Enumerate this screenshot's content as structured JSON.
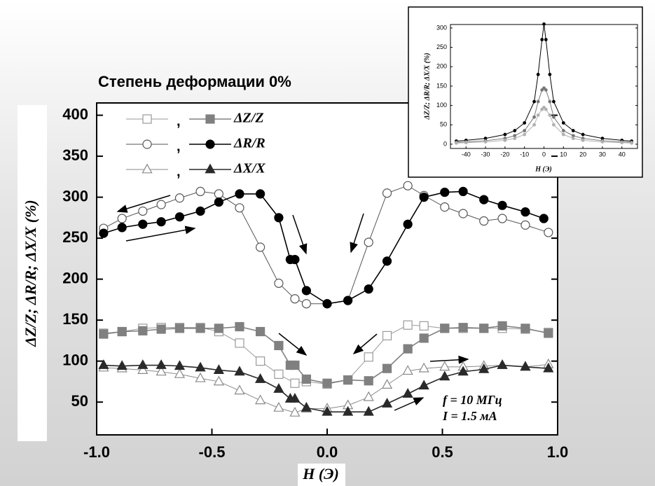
{
  "chart_data": [
    {
      "type": "line",
      "title": "Степень деформации 0%",
      "x_label": "H  (Э)",
      "y_label": "ΔZ/Z;  ΔR/R;  ΔX/X    (%)",
      "annotations": [
        "f = 10 МГц",
        "I = 1.5 мА"
      ],
      "xlim": [
        -1.0,
        1.0
      ],
      "ylim": [
        10,
        415
      ],
      "xticks": [
        {
          "value": -1.0,
          "label": "-1.0"
        },
        {
          "value": -0.5,
          "label": "-0.5"
        },
        {
          "value": 0,
          "label": "0.0"
        },
        {
          "value": 0.5,
          "label": "0.5"
        },
        {
          "value": 1.0,
          "label": "1.0"
        }
      ],
      "yticks": [
        50,
        100,
        150,
        200,
        250,
        300,
        350,
        400
      ],
      "series": [
        {
          "marker": "square",
          "filled": false,
          "color": "#9a9a9a",
          "x": [
            -0.97,
            -0.89,
            -0.8,
            -0.72,
            -0.64,
            -0.55,
            -0.47,
            -0.38,
            -0.29,
            -0.21,
            -0.14,
            -0.09,
            0,
            0.09,
            0.18,
            0.26,
            0.35,
            0.42,
            0.51,
            0.59,
            0.68,
            0.76,
            0.86,
            0.96
          ],
          "values": [
            134,
            136,
            140,
            141,
            141,
            141,
            136,
            122,
            100,
            84,
            73,
            75,
            72,
            77,
            105,
            131,
            144,
            143,
            140,
            140,
            140,
            140,
            139,
            135
          ]
        },
        {
          "name": "ΔZ/Z",
          "marker": "square",
          "filled": true,
          "color": "#808080",
          "x": [
            -0.97,
            -0.89,
            -0.8,
            -0.72,
            -0.64,
            -0.55,
            -0.47,
            -0.38,
            -0.29,
            -0.21,
            -0.16,
            -0.14,
            -0.09,
            0,
            0.09,
            0.18,
            0.26,
            0.35,
            0.42,
            0.51,
            0.59,
            0.68,
            0.76,
            0.86,
            0.96
          ],
          "values": [
            133,
            136,
            137,
            139,
            140,
            140,
            140,
            142,
            136,
            119,
            95,
            95,
            78,
            73,
            77,
            76,
            91,
            115,
            128,
            140,
            141,
            140,
            143,
            140,
            134
          ]
        },
        {
          "marker": "circle",
          "filled": false,
          "color": "#555555",
          "x": [
            -0.97,
            -0.89,
            -0.8,
            -0.72,
            -0.64,
            -0.55,
            -0.47,
            -0.38,
            -0.29,
            -0.21,
            -0.14,
            -0.09,
            0,
            0.09,
            0.18,
            0.26,
            0.35,
            0.42,
            0.51,
            0.59,
            0.68,
            0.76,
            0.86,
            0.96
          ],
          "values": [
            262,
            274,
            283,
            291,
            299,
            307,
            304,
            287,
            239,
            195,
            176,
            170,
            170,
            174,
            245,
            305,
            314,
            302,
            288,
            280,
            271,
            274,
            266,
            257
          ]
        },
        {
          "name": "ΔR/R",
          "marker": "circle",
          "filled": true,
          "color": "#000000",
          "x": [
            -0.97,
            -0.89,
            -0.8,
            -0.72,
            -0.64,
            -0.55,
            -0.47,
            -0.38,
            -0.29,
            -0.21,
            -0.16,
            -0.14,
            -0.09,
            0,
            0.09,
            0.18,
            0.26,
            0.35,
            0.42,
            0.51,
            0.59,
            0.68,
            0.76,
            0.86,
            0.94
          ],
          "values": [
            256,
            263,
            267,
            270,
            276,
            283,
            294,
            304,
            304,
            275,
            224,
            224,
            186,
            170,
            174,
            188,
            222,
            267,
            300,
            306,
            307,
            297,
            290,
            282,
            274
          ]
        },
        {
          "marker": "triangle",
          "filled": false,
          "color": "#8a8a8a",
          "x": [
            -0.97,
            -0.89,
            -0.8,
            -0.72,
            -0.64,
            -0.55,
            -0.47,
            -0.38,
            -0.29,
            -0.21,
            -0.14,
            -0.09,
            0,
            0.09,
            0.18,
            0.26,
            0.35,
            0.42,
            0.51,
            0.59,
            0.68,
            0.76,
            0.86,
            0.96
          ],
          "values": [
            92,
            91,
            89,
            87,
            84,
            79,
            75,
            64,
            52,
            43,
            37,
            42,
            42,
            46,
            56,
            71,
            88,
            91,
            93,
            93,
            94,
            95,
            93,
            96
          ]
        },
        {
          "name": "ΔX/X",
          "marker": "triangle",
          "filled": true,
          "color": "#2a2a2a",
          "x": [
            -0.97,
            -0.89,
            -0.8,
            -0.72,
            -0.64,
            -0.55,
            -0.47,
            -0.38,
            -0.29,
            -0.21,
            -0.16,
            -0.14,
            -0.09,
            0,
            0.09,
            0.18,
            0.26,
            0.35,
            0.42,
            0.51,
            0.59,
            0.68,
            0.76,
            0.86,
            0.96
          ],
          "values": [
            95,
            94,
            95,
            95,
            94,
            92,
            89,
            87,
            78,
            66,
            54,
            54,
            43,
            38,
            38,
            38,
            48,
            60,
            70,
            81,
            87,
            90,
            95,
            93,
            91
          ]
        }
      ]
    },
    {
      "type": "line",
      "x_label": "H  (Э)",
      "y_label": "ΔZ/Z;  ΔR/R;  ΔX/X  (%)",
      "xlim": [
        -48,
        48
      ],
      "ylim": [
        -11,
        309
      ],
      "xticks": [
        -40,
        -30,
        -20,
        -10,
        0,
        10,
        20,
        30,
        40
      ],
      "yticks": [
        0,
        50,
        100,
        150,
        200,
        250,
        300
      ],
      "series": [
        {
          "color": "#000000",
          "x": [
            -45,
            -40,
            -30,
            -20,
            -15,
            -10,
            -5,
            -3,
            -1,
            0,
            1,
            3,
            5,
            10,
            15,
            20,
            30,
            40,
            45
          ],
          "values": [
            8,
            10,
            15,
            25,
            35,
            55,
            110,
            180,
            270,
            310,
            270,
            180,
            110,
            55,
            35,
            25,
            15,
            10,
            8
          ]
        },
        {
          "color": "#777777",
          "x": [
            -45,
            -40,
            -30,
            -20,
            -15,
            -10,
            -5,
            -3,
            -1,
            0,
            1,
            3,
            5,
            10,
            15,
            20,
            30,
            40,
            45
          ],
          "values": [
            5,
            6,
            9,
            15,
            22,
            35,
            70,
            110,
            140,
            145,
            140,
            110,
            70,
            35,
            22,
            15,
            9,
            6,
            5
          ]
        },
        {
          "color": "#b0b0b0",
          "x": [
            -45,
            -40,
            -30,
            -20,
            -15,
            -10,
            -5,
            -3,
            -1,
            0,
            1,
            3,
            5,
            10,
            15,
            20,
            30,
            40,
            45
          ],
          "values": [
            3,
            4,
            6,
            10,
            15,
            25,
            50,
            75,
            90,
            95,
            90,
            75,
            50,
            25,
            15,
            10,
            6,
            4,
            3
          ]
        }
      ]
    }
  ]
}
